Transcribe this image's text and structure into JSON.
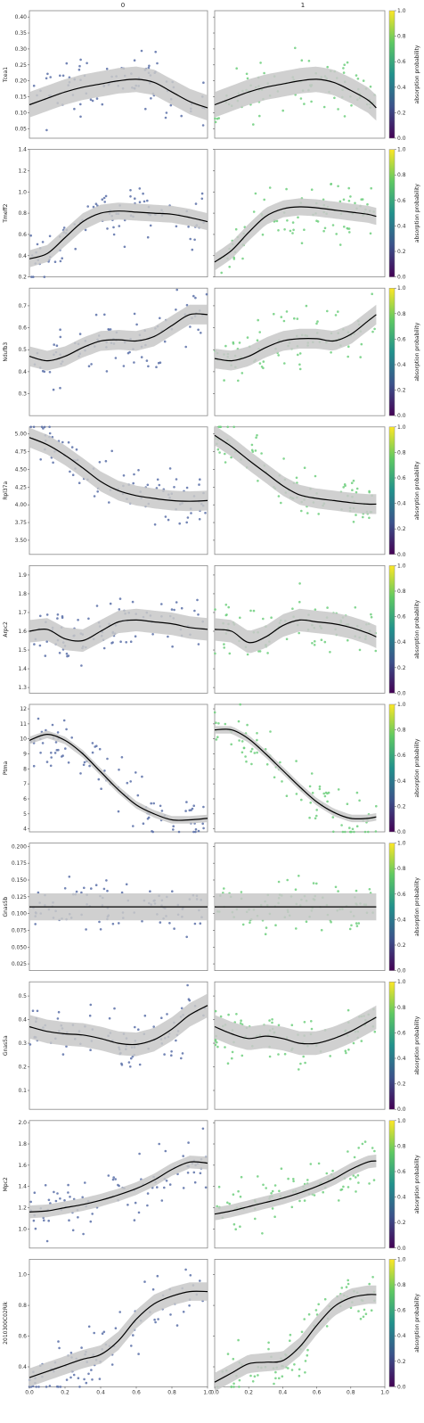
{
  "chart_data": {
    "type": "scatter",
    "columns": [
      "0",
      "1"
    ],
    "x_ticks": [
      "0.0",
      "0.2",
      "0.4",
      "0.6",
      "0.8",
      "1.0"
    ],
    "xlim": [
      0,
      1
    ],
    "colorbar": {
      "label": "absorption probability",
      "ticks": [
        "0.0",
        "0.2",
        "0.4",
        "0.6",
        "0.8",
        "1.0"
      ],
      "colormap": [
        "#440154",
        "#3b528b",
        "#21918c",
        "#5ec962",
        "#fde725"
      ]
    },
    "point_colors": {
      "0": "#5a70a8",
      "1": "#6fcf7e"
    },
    "trend_color": "#000000",
    "band_color": "#c8c8c8",
    "genes": [
      {
        "name": "Tcea1",
        "ylim": [
          0.02,
          0.42
        ],
        "yticks": [
          "0.05",
          "0.10",
          "0.15",
          "0.20",
          "0.25",
          "0.30",
          "0.35",
          "0.40"
        ],
        "yticks_values": [
          0.05,
          0.1,
          0.15,
          0.2,
          0.25,
          0.3,
          0.35,
          0.4
        ],
        "trend": {
          "0": {
            "x": [
              0,
              0.1,
              0.2,
              0.3,
              0.4,
              0.5,
              0.6,
              0.7,
              0.8,
              0.9,
              1.0
            ],
            "y": [
              0.125,
              0.145,
              0.165,
              0.18,
              0.19,
              0.2,
              0.205,
              0.195,
              0.165,
              0.135,
              0.115
            ]
          },
          "1": {
            "x": [
              0,
              0.1,
              0.2,
              0.3,
              0.4,
              0.5,
              0.6,
              0.7,
              0.8,
              0.9,
              0.95
            ],
            "y": [
              0.125,
              0.145,
              0.165,
              0.18,
              0.19,
              0.2,
              0.205,
              0.195,
              0.17,
              0.14,
              0.115
            ]
          }
        },
        "band_halfwidth": 0.04
      },
      {
        "name": "Tmeff2",
        "ylim": [
          0.2,
          1.4
        ],
        "yticks": [
          "0.2",
          "0.4",
          "0.6",
          "0.8",
          "1.0",
          "1.2",
          "1.4"
        ],
        "yticks_values": [
          0.2,
          0.4,
          0.6,
          0.8,
          1.0,
          1.2,
          1.4
        ],
        "trend": {
          "0": {
            "x": [
              0,
              0.1,
              0.2,
              0.3,
              0.4,
              0.5,
              0.6,
              0.7,
              0.8,
              0.9,
              1.0
            ],
            "y": [
              0.37,
              0.42,
              0.57,
              0.72,
              0.8,
              0.82,
              0.81,
              0.8,
              0.79,
              0.76,
              0.72
            ]
          },
          "1": {
            "x": [
              0,
              0.1,
              0.2,
              0.3,
              0.4,
              0.5,
              0.6,
              0.7,
              0.8,
              0.9,
              0.95
            ],
            "y": [
              0.34,
              0.45,
              0.62,
              0.77,
              0.84,
              0.86,
              0.85,
              0.83,
              0.81,
              0.79,
              0.77
            ]
          }
        },
        "band_halfwidth": 0.08
      },
      {
        "name": "Ndufb3",
        "ylim": [
          0.2,
          0.78
        ],
        "yticks": [
          "0.3",
          "0.4",
          "0.5",
          "0.6",
          "0.7"
        ],
        "yticks_values": [
          0.3,
          0.4,
          0.5,
          0.6,
          0.7
        ],
        "trend": {
          "0": {
            "x": [
              0,
              0.1,
              0.2,
              0.3,
              0.4,
              0.5,
              0.6,
              0.7,
              0.8,
              0.9,
              1.0
            ],
            "y": [
              0.47,
              0.45,
              0.47,
              0.51,
              0.54,
              0.545,
              0.54,
              0.56,
              0.61,
              0.66,
              0.66
            ]
          },
          "1": {
            "x": [
              0,
              0.1,
              0.2,
              0.3,
              0.4,
              0.5,
              0.6,
              0.7,
              0.8,
              0.9,
              0.95
            ],
            "y": [
              0.46,
              0.45,
              0.47,
              0.51,
              0.54,
              0.55,
              0.55,
              0.54,
              0.57,
              0.63,
              0.66
            ]
          }
        },
        "band_halfwidth": 0.045
      },
      {
        "name": "Rpl37a",
        "ylim": [
          3.3,
          5.1
        ],
        "yticks": [
          "3.50",
          "3.75",
          "4.00",
          "4.25",
          "4.50",
          "4.75",
          "5.00"
        ],
        "yticks_values": [
          3.5,
          3.75,
          4.0,
          4.25,
          4.5,
          4.75,
          5.0
        ],
        "trend": {
          "0": {
            "x": [
              0,
              0.1,
              0.2,
              0.3,
              0.4,
              0.5,
              0.6,
              0.7,
              0.8,
              0.9,
              1.0
            ],
            "y": [
              4.95,
              4.85,
              4.7,
              4.52,
              4.33,
              4.2,
              4.13,
              4.09,
              4.06,
              4.05,
              4.06
            ]
          },
          "1": {
            "x": [
              0,
              0.1,
              0.2,
              0.3,
              0.4,
              0.5,
              0.6,
              0.7,
              0.8,
              0.9,
              0.95
            ],
            "y": [
              4.98,
              4.82,
              4.63,
              4.45,
              4.27,
              4.14,
              4.09,
              4.06,
              4.03,
              4.01,
              4.01
            ]
          }
        },
        "band_halfwidth": 0.14
      },
      {
        "name": "Arpc2",
        "ylim": [
          1.27,
          1.95
        ],
        "yticks": [
          "1.3",
          "1.4",
          "1.5",
          "1.6",
          "1.7",
          "1.8",
          "1.9"
        ],
        "yticks_values": [
          1.3,
          1.4,
          1.5,
          1.6,
          1.7,
          1.8,
          1.9
        ],
        "trend": {
          "0": {
            "x": [
              0,
              0.1,
              0.2,
              0.3,
              0.4,
              0.5,
              0.6,
              0.7,
              0.8,
              0.9,
              1.0
            ],
            "y": [
              1.6,
              1.61,
              1.56,
              1.55,
              1.6,
              1.65,
              1.66,
              1.65,
              1.64,
              1.62,
              1.61
            ]
          },
          "1": {
            "x": [
              0,
              0.1,
              0.2,
              0.3,
              0.4,
              0.5,
              0.6,
              0.7,
              0.8,
              0.9,
              0.95
            ],
            "y": [
              1.61,
              1.6,
              1.54,
              1.57,
              1.63,
              1.66,
              1.65,
              1.64,
              1.62,
              1.59,
              1.57
            ]
          }
        },
        "band_halfwidth": 0.06
      },
      {
        "name": "Ptma",
        "ylim": [
          3.8,
          12.3
        ],
        "yticks": [
          "4",
          "5",
          "6",
          "7",
          "8",
          "9",
          "10",
          "11",
          "12"
        ],
        "yticks_values": [
          4,
          5,
          6,
          7,
          8,
          9,
          10,
          11,
          12
        ],
        "trend": {
          "0": {
            "x": [
              0,
              0.1,
              0.2,
              0.3,
              0.4,
              0.5,
              0.6,
              0.7,
              0.8,
              0.9,
              1.0
            ],
            "y": [
              9.9,
              10.3,
              9.9,
              9.0,
              7.8,
              6.6,
              5.6,
              5.0,
              4.6,
              4.6,
              4.7
            ]
          },
          "1": {
            "x": [
              0,
              0.1,
              0.2,
              0.3,
              0.4,
              0.5,
              0.6,
              0.7,
              0.8,
              0.9,
              0.95
            ],
            "y": [
              10.6,
              10.6,
              10.0,
              9.0,
              7.9,
              6.8,
              5.8,
              5.1,
              4.7,
              4.7,
              4.8
            ]
          }
        },
        "band_halfwidth": 0.25
      },
      {
        "name": "Gnas5b",
        "ylim": [
          0.015,
          0.205
        ],
        "yticks": [
          "0.025",
          "0.050",
          "0.075",
          "0.100",
          "0.125",
          "0.150",
          "0.175",
          "0.200"
        ],
        "yticks_values": [
          0.025,
          0.05,
          0.075,
          0.1,
          0.125,
          0.15,
          0.175,
          0.2
        ],
        "trend": {
          "0": {
            "x": [
              0,
              1.0
            ],
            "y": [
              0.11,
              0.11
            ]
          },
          "1": {
            "x": [
              0,
              0.95
            ],
            "y": [
              0.11,
              0.11
            ]
          }
        },
        "band_halfwidth": 0.02
      },
      {
        "name": "Gnas5a",
        "ylim": [
          0.02,
          0.56
        ],
        "yticks": [
          "0.1",
          "0.2",
          "0.3",
          "0.4",
          "0.5"
        ],
        "yticks_values": [
          0.1,
          0.2,
          0.3,
          0.4,
          0.5
        ],
        "trend": {
          "0": {
            "x": [
              0,
              0.1,
              0.2,
              0.3,
              0.4,
              0.5,
              0.6,
              0.7,
              0.8,
              0.9,
              1.0
            ],
            "y": [
              0.37,
              0.35,
              0.34,
              0.335,
              0.32,
              0.3,
              0.295,
              0.315,
              0.36,
              0.42,
              0.46
            ]
          },
          "1": {
            "x": [
              0,
              0.1,
              0.2,
              0.3,
              0.4,
              0.5,
              0.6,
              0.7,
              0.8,
              0.9,
              0.95
            ],
            "y": [
              0.37,
              0.34,
              0.32,
              0.33,
              0.32,
              0.3,
              0.3,
              0.32,
              0.35,
              0.39,
              0.41
            ]
          }
        },
        "band_halfwidth": 0.05
      },
      {
        "name": "Mpc2",
        "ylim": [
          0.82,
          2.02
        ],
        "yticks": [
          "1.0",
          "1.2",
          "1.4",
          "1.6",
          "1.8",
          "2.0"
        ],
        "yticks_values": [
          1.0,
          1.2,
          1.4,
          1.6,
          1.8,
          2.0
        ],
        "trend": {
          "0": {
            "x": [
              0,
              0.1,
              0.2,
              0.3,
              0.4,
              0.5,
              0.6,
              0.7,
              0.8,
              0.9,
              1.0
            ],
            "y": [
              1.16,
              1.17,
              1.2,
              1.23,
              1.27,
              1.32,
              1.38,
              1.46,
              1.56,
              1.63,
              1.62
            ]
          },
          "1": {
            "x": [
              0,
              0.1,
              0.2,
              0.3,
              0.4,
              0.5,
              0.6,
              0.7,
              0.8,
              0.9,
              0.95
            ],
            "y": [
              1.14,
              1.17,
              1.21,
              1.25,
              1.29,
              1.34,
              1.4,
              1.47,
              1.56,
              1.63,
              1.64
            ]
          }
        },
        "band_halfwidth": 0.06
      },
      {
        "name": "2010300C02Rik",
        "ylim": [
          0.27,
          1.1
        ],
        "yticks": [
          "0.4",
          "0.6",
          "0.8",
          "1.0"
        ],
        "yticks_values": [
          0.4,
          0.6,
          0.8,
          1.0
        ],
        "trend": {
          "0": {
            "x": [
              0,
              0.1,
              0.2,
              0.3,
              0.4,
              0.5,
              0.6,
              0.7,
              0.8,
              0.9,
              1.0
            ],
            "y": [
              0.33,
              0.37,
              0.41,
              0.45,
              0.48,
              0.57,
              0.71,
              0.81,
              0.86,
              0.89,
              0.89
            ]
          },
          "1": {
            "x": [
              0,
              0.1,
              0.2,
              0.3,
              0.4,
              0.5,
              0.6,
              0.7,
              0.8,
              0.9,
              0.95
            ],
            "y": [
              0.3,
              0.36,
              0.42,
              0.43,
              0.44,
              0.53,
              0.67,
              0.79,
              0.85,
              0.87,
              0.87
            ]
          }
        },
        "band_halfwidth": 0.06
      }
    ]
  }
}
